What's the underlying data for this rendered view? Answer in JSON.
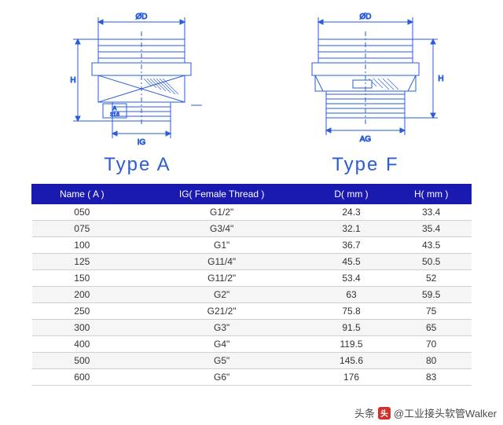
{
  "diagrams": {
    "left": {
      "label": "Type A",
      "dim_top": "ØD",
      "dim_side": "H",
      "dim_bottom": "IG",
      "marking_top": "A",
      "marking_bottom": "316",
      "stroke": "#2a5cd8",
      "fill": "#ffffff"
    },
    "right": {
      "label": "Type F",
      "dim_top": "ØD",
      "dim_side": "H",
      "dim_bottom": "AG",
      "stroke": "#2a5cd8",
      "fill": "#ffffff"
    },
    "label_color": "#2a5cd8",
    "label_fontsize": 24
  },
  "table": {
    "header_bg": "#1a1ab0",
    "header_fg": "#ffffff",
    "row_alt_bg": "#f5f5f5",
    "border_color": "#d0d0d0",
    "columns": [
      "Name ( A )",
      "IG( Female Thread )",
      "D( mm )",
      "H( mm )"
    ],
    "rows": [
      [
        "050",
        "G1/2\"",
        "24.3",
        "33.4"
      ],
      [
        "075",
        "G3/4\"",
        "32.1",
        "35.4"
      ],
      [
        "100",
        "G1\"",
        "36.7",
        "43.5"
      ],
      [
        "125",
        "G11/4\"",
        "45.5",
        "50.5"
      ],
      [
        "150",
        "G11/2\"",
        "53.4",
        "52"
      ],
      [
        "200",
        "G2\"",
        "63",
        "59.5"
      ],
      [
        "250",
        "G21/2\"",
        "75.8",
        "75"
      ],
      [
        "300",
        "G3\"",
        "91.5",
        "65"
      ],
      [
        "400",
        "G4\"",
        "119.5",
        "70"
      ],
      [
        "500",
        "G5\"",
        "145.6",
        "80"
      ],
      [
        "600",
        "G6\"",
        "176",
        "83"
      ]
    ]
  },
  "attribution": {
    "prefix": "头条",
    "text": "@工业接头软管Walker",
    "icon_bg": "#d32f2f",
    "icon_glyph": "头"
  }
}
